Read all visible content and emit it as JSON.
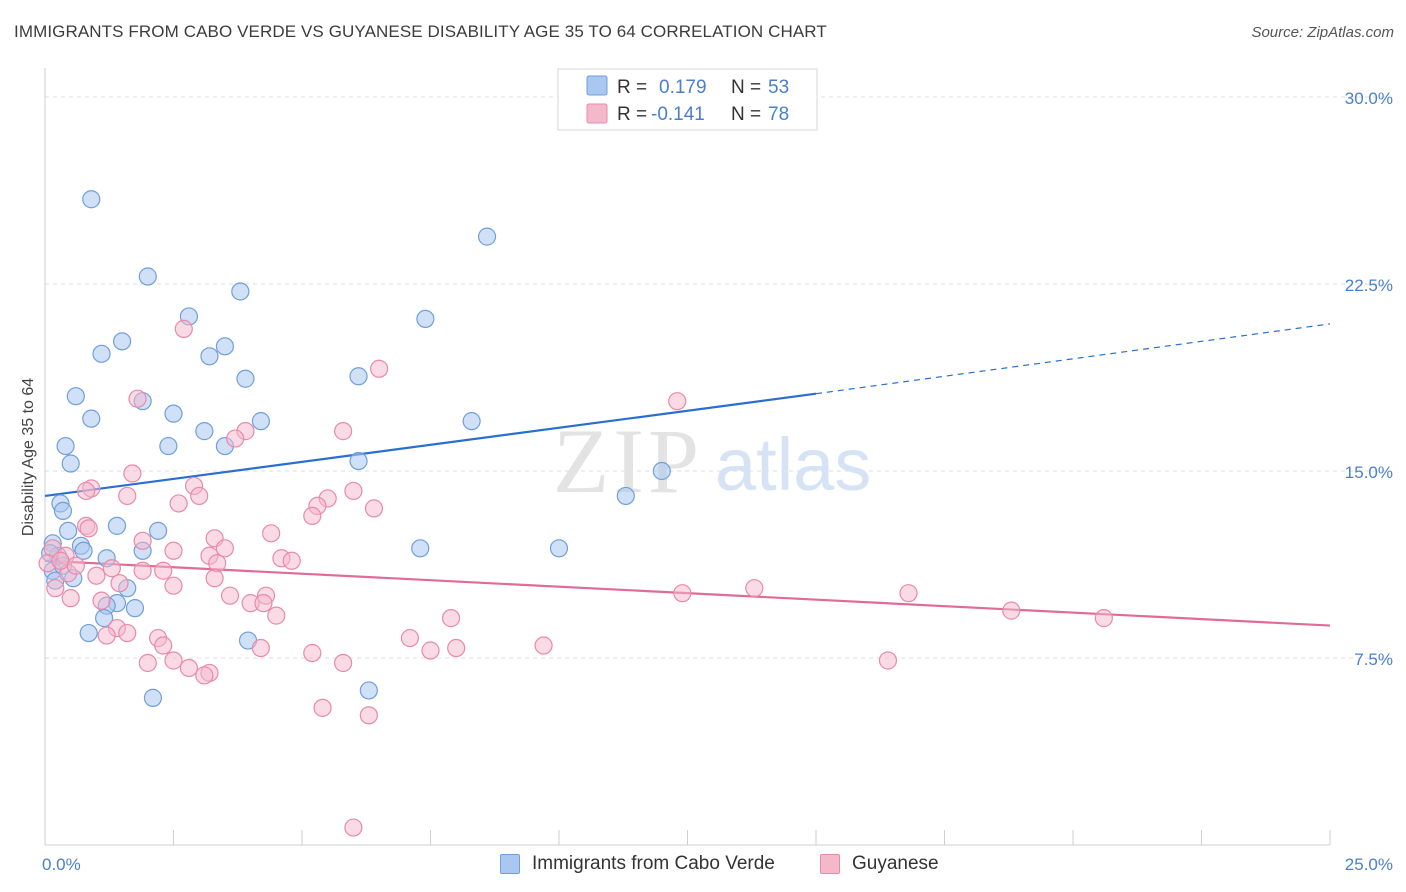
{
  "header": {
    "title": "IMMIGRANTS FROM CABO VERDE VS GUYANESE DISABILITY AGE 35 TO 64 CORRELATION CHART",
    "source": "Source: ZipAtlas.com"
  },
  "watermark": {
    "zip": "ZIP",
    "atlas": "atlas"
  },
  "stats_legend": {
    "rows": [
      {
        "r_label": "R =",
        "r_value": "0.179",
        "n_label": "N =",
        "n_value": "53"
      },
      {
        "r_label": "R =",
        "r_value": "-0.141",
        "n_label": "N =",
        "n_value": "78"
      }
    ]
  },
  "bottom_legend": {
    "items": [
      {
        "label": "Immigrants from Cabo Verde"
      },
      {
        "label": "Guyanese"
      }
    ]
  },
  "colors": {
    "blue_fill": "#a9c7f0",
    "blue_stroke": "#6f9fdc",
    "blue_line": "#2a6fd0",
    "pink_fill": "#f5b8cb",
    "pink_stroke": "#e98aa8",
    "pink_line": "#e06b96",
    "tick_text": "#4a7fd0",
    "grid": "#dcdcdc"
  },
  "chart_data": {
    "type": "scatter",
    "title": "IMMIGRANTS FROM CABO VERDE VS GUYANESE DISABILITY AGE 35 TO 64 CORRELATION CHART",
    "ylabel": "Disability Age 35 to 64",
    "xlabel": "",
    "xlim": [
      0,
      25
    ],
    "ylim": [
      0,
      30.5
    ],
    "x_tick_labels": [
      "0.0%",
      "25.0%"
    ],
    "y_tick_values": [
      7.5,
      15.0,
      22.5,
      30.0
    ],
    "y_tick_labels": [
      "7.5%",
      "15.0%",
      "22.5%",
      "30.0%"
    ],
    "grid": true,
    "legend_position": "top-center",
    "series": [
      {
        "name": "Immigrants from Cabo Verde",
        "r": 0.179,
        "n": 53,
        "trend": {
          "x0": 0,
          "y0": 14.0,
          "x1": 15.0,
          "y1": 18.1,
          "dash_to_x": 25,
          "dash_to_y": 20.9
        },
        "points": [
          [
            0.9,
            25.9
          ],
          [
            2.0,
            22.8
          ],
          [
            3.8,
            22.2
          ],
          [
            8.6,
            24.4
          ],
          [
            2.8,
            21.2
          ],
          [
            7.4,
            21.1
          ],
          [
            1.5,
            20.2
          ],
          [
            3.5,
            20.0
          ],
          [
            1.1,
            19.7
          ],
          [
            3.2,
            19.6
          ],
          [
            3.9,
            18.7
          ],
          [
            6.1,
            18.8
          ],
          [
            0.6,
            18.0
          ],
          [
            1.9,
            17.8
          ],
          [
            2.5,
            17.3
          ],
          [
            0.9,
            17.1
          ],
          [
            4.2,
            17.0
          ],
          [
            8.3,
            17.0
          ],
          [
            3.1,
            16.6
          ],
          [
            0.4,
            16.0
          ],
          [
            2.4,
            16.0
          ],
          [
            3.5,
            16.0
          ],
          [
            0.5,
            15.3
          ],
          [
            6.1,
            15.4
          ],
          [
            12.0,
            15.0
          ],
          [
            11.3,
            14.0
          ],
          [
            0.3,
            13.7
          ],
          [
            0.35,
            13.4
          ],
          [
            0.45,
            12.6
          ],
          [
            1.4,
            12.8
          ],
          [
            2.2,
            12.6
          ],
          [
            0.7,
            12.0
          ],
          [
            0.75,
            11.8
          ],
          [
            0.15,
            12.1
          ],
          [
            1.9,
            11.8
          ],
          [
            7.3,
            11.9
          ],
          [
            10.0,
            11.9
          ],
          [
            0.25,
            11.6
          ],
          [
            1.2,
            11.5
          ],
          [
            0.15,
            11.0
          ],
          [
            0.2,
            10.6
          ],
          [
            1.6,
            10.3
          ],
          [
            1.4,
            9.7
          ],
          [
            1.2,
            9.6
          ],
          [
            1.75,
            9.5
          ],
          [
            1.15,
            9.1
          ],
          [
            0.85,
            8.5
          ],
          [
            3.95,
            8.2
          ],
          [
            2.1,
            5.9
          ],
          [
            6.3,
            6.2
          ],
          [
            0.1,
            11.7
          ],
          [
            0.35,
            11.2
          ],
          [
            0.55,
            10.7
          ]
        ]
      },
      {
        "name": "Guyanese",
        "r": -0.141,
        "n": 78,
        "trend": {
          "x0": 0,
          "y0": 11.4,
          "x1": 25,
          "y1": 8.8
        },
        "points": [
          [
            2.7,
            20.7
          ],
          [
            6.5,
            19.1
          ],
          [
            1.8,
            17.9
          ],
          [
            12.3,
            17.8
          ],
          [
            3.9,
            16.6
          ],
          [
            5.8,
            16.6
          ],
          [
            3.7,
            16.3
          ],
          [
            1.7,
            14.9
          ],
          [
            2.9,
            14.4
          ],
          [
            0.9,
            14.3
          ],
          [
            0.8,
            14.2
          ],
          [
            6.0,
            14.2
          ],
          [
            1.6,
            14.0
          ],
          [
            3.0,
            14.0
          ],
          [
            5.5,
            13.9
          ],
          [
            2.6,
            13.7
          ],
          [
            5.3,
            13.6
          ],
          [
            6.4,
            13.5
          ],
          [
            5.2,
            13.2
          ],
          [
            0.8,
            12.8
          ],
          [
            0.85,
            12.7
          ],
          [
            4.4,
            12.5
          ],
          [
            3.3,
            12.3
          ],
          [
            1.9,
            12.2
          ],
          [
            0.15,
            11.9
          ],
          [
            3.5,
            11.9
          ],
          [
            2.5,
            11.8
          ],
          [
            0.4,
            11.6
          ],
          [
            3.2,
            11.6
          ],
          [
            4.6,
            11.5
          ],
          [
            0.05,
            11.3
          ],
          [
            4.8,
            11.4
          ],
          [
            3.35,
            11.3
          ],
          [
            1.3,
            11.1
          ],
          [
            1.9,
            11.0
          ],
          [
            2.3,
            11.0
          ],
          [
            0.45,
            10.9
          ],
          [
            1.0,
            10.8
          ],
          [
            3.3,
            10.7
          ],
          [
            1.45,
            10.5
          ],
          [
            2.5,
            10.4
          ],
          [
            13.8,
            10.3
          ],
          [
            0.2,
            10.3
          ],
          [
            12.4,
            10.1
          ],
          [
            16.8,
            10.1
          ],
          [
            3.6,
            10.0
          ],
          [
            4.3,
            10.0
          ],
          [
            0.5,
            9.9
          ],
          [
            4.0,
            9.7
          ],
          [
            4.25,
            9.7
          ],
          [
            1.1,
            9.8
          ],
          [
            18.8,
            9.4
          ],
          [
            4.5,
            9.2
          ],
          [
            20.6,
            9.1
          ],
          [
            7.9,
            9.1
          ],
          [
            1.4,
            8.7
          ],
          [
            1.6,
            8.5
          ],
          [
            1.2,
            8.4
          ],
          [
            2.2,
            8.3
          ],
          [
            7.1,
            8.3
          ],
          [
            2.3,
            8.0
          ],
          [
            9.7,
            8.0
          ],
          [
            4.2,
            7.9
          ],
          [
            8.0,
            7.9
          ],
          [
            7.5,
            7.8
          ],
          [
            5.2,
            7.7
          ],
          [
            16.4,
            7.4
          ],
          [
            2.0,
            7.3
          ],
          [
            2.5,
            7.4
          ],
          [
            5.8,
            7.3
          ],
          [
            2.8,
            7.1
          ],
          [
            3.2,
            6.9
          ],
          [
            3.1,
            6.8
          ],
          [
            5.4,
            5.5
          ],
          [
            6.3,
            5.2
          ],
          [
            6.0,
            0.7
          ],
          [
            0.3,
            11.4
          ],
          [
            0.6,
            11.2
          ]
        ]
      }
    ]
  }
}
